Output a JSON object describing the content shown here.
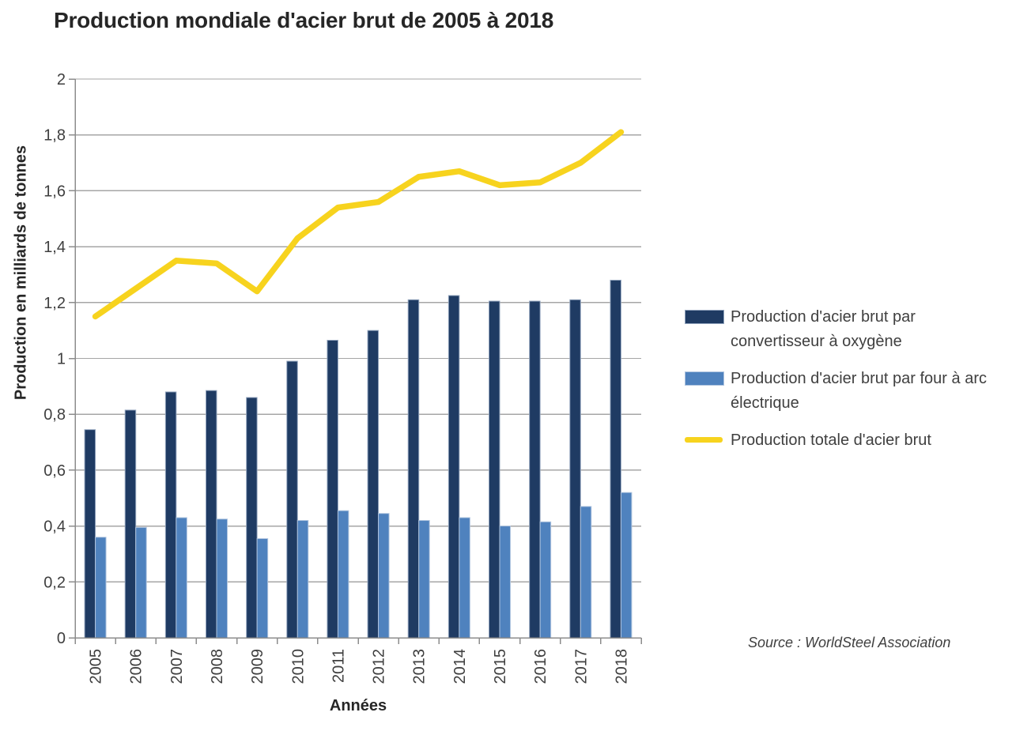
{
  "source": "Source : WorldSteel Association",
  "colors": {
    "background": "#FFFFFF",
    "gridline": "#A6A6A6",
    "axis": "#8C8C8C",
    "tick_text": "#3F3F3F",
    "title_text": "#262626",
    "oxygen_bar": "#1F3B63",
    "eaf_bar": "#4F82BE",
    "total_line": "#F7D31E"
  },
  "chart_data": {
    "type": "combo",
    "title": "Production mondiale d'acier brut de 2005 à 2018",
    "xlabel": "Années",
    "ylabel": "Production en milliards de tonnes",
    "ylim": [
      0,
      2
    ],
    "ytick_step": 0.2,
    "ytick_labels": [
      "0",
      "0,2",
      "0,4",
      "0,6",
      "0,8",
      "1",
      "1,2",
      "1,4",
      "1,6",
      "1,8",
      "2"
    ],
    "grid": true,
    "legend_position": "right",
    "categories": [
      "2005",
      "2006",
      "2007",
      "2008",
      "2009",
      "2010",
      "2011",
      "2012",
      "2013",
      "2014",
      "2015",
      "2016",
      "2017",
      "2018"
    ],
    "series": [
      {
        "id": "oxygen",
        "name": "Production d'acier brut par convertisseur à oxygène",
        "type": "bar",
        "color": "#1F3B63",
        "edge": "#93A5BE",
        "values": [
          0.745,
          0.815,
          0.88,
          0.885,
          0.86,
          0.99,
          1.065,
          1.1,
          1.21,
          1.225,
          1.205,
          1.205,
          1.21,
          1.28
        ]
      },
      {
        "id": "eaf",
        "name": "Production d'acier brut par four à arc électrique",
        "type": "bar",
        "color": "#4F82BE",
        "edge": "#AFC4DF",
        "values": [
          0.36,
          0.395,
          0.43,
          0.425,
          0.355,
          0.42,
          0.455,
          0.445,
          0.42,
          0.43,
          0.4,
          0.415,
          0.47,
          0.52
        ]
      },
      {
        "id": "total",
        "name": "Production totale d'acier brut",
        "type": "line",
        "color": "#F7D31E",
        "values": [
          1.15,
          1.25,
          1.35,
          1.34,
          1.24,
          1.43,
          1.54,
          1.56,
          1.65,
          1.67,
          1.62,
          1.63,
          1.7,
          1.81
        ]
      }
    ]
  }
}
